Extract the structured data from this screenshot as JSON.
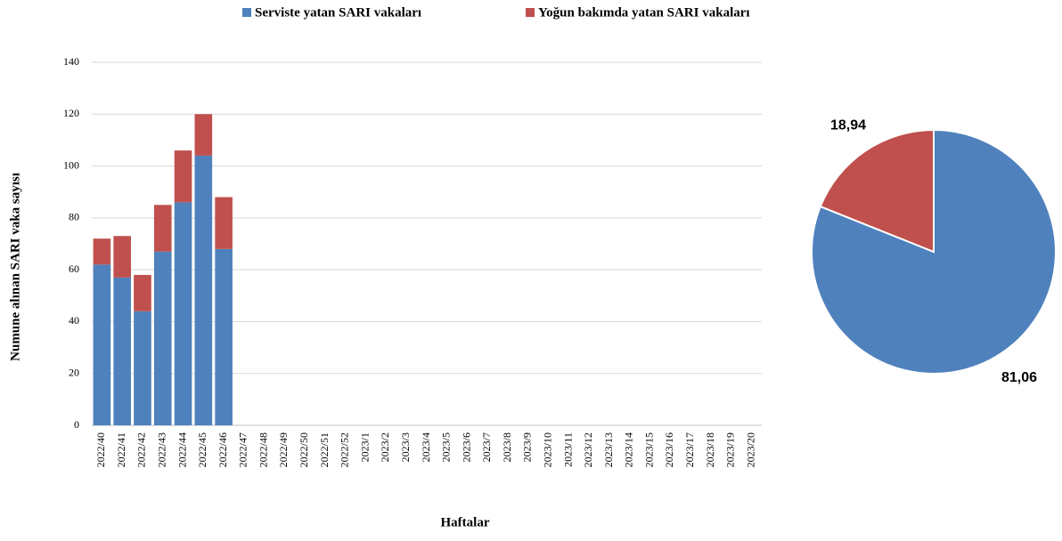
{
  "chart_data": [
    {
      "type": "bar",
      "stacked": true,
      "y_label": "Numune alınan SARI vaka sayısı",
      "x_label": "Haftalar",
      "categories": [
        "2022/40",
        "2022/41",
        "2022/42",
        "2022/43",
        "2022/44",
        "2022/45",
        "2022/46",
        "2022/47",
        "2022/48",
        "2022/49",
        "2022/50",
        "2022/51",
        "2022/52",
        "2023/1",
        "2023/2",
        "2023/3",
        "2023/4",
        "2023/5",
        "2023/6",
        "2023/7",
        "2023/8",
        "2023/9",
        "2023/10",
        "2023/11",
        "2023/12",
        "2023/13",
        "2023/14",
        "2023/15",
        "2023/16",
        "2023/17",
        "2023/18",
        "2023/19",
        "2023/20"
      ],
      "series": [
        {
          "name": "Serviste yatan SARI vakaları",
          "color": "#4f81bd",
          "values": [
            62,
            57,
            44,
            67,
            86,
            104,
            68,
            null,
            null,
            null,
            null,
            null,
            null,
            null,
            null,
            null,
            null,
            null,
            null,
            null,
            null,
            null,
            null,
            null,
            null,
            null,
            null,
            null,
            null,
            null,
            null,
            null,
            null
          ]
        },
        {
          "name": "Yoğun bakımda yatan SARI vakaları",
          "color": "#c0504d",
          "values": [
            10,
            16,
            14,
            18,
            20,
            16,
            20,
            null,
            null,
            null,
            null,
            null,
            null,
            null,
            null,
            null,
            null,
            null,
            null,
            null,
            null,
            null,
            null,
            null,
            null,
            null,
            null,
            null,
            null,
            null,
            null,
            null,
            null
          ]
        }
      ],
      "ylim": [
        0,
        140
      ],
      "yticks": [
        0,
        20,
        40,
        60,
        80,
        100,
        120,
        140
      ],
      "grid": true,
      "legend": "top"
    },
    {
      "type": "pie",
      "values": [
        81.06,
        18.94
      ],
      "value_labels": [
        "81,06",
        "18,94"
      ],
      "colors": [
        "#4f81bd",
        "#c0504d"
      ]
    }
  ]
}
